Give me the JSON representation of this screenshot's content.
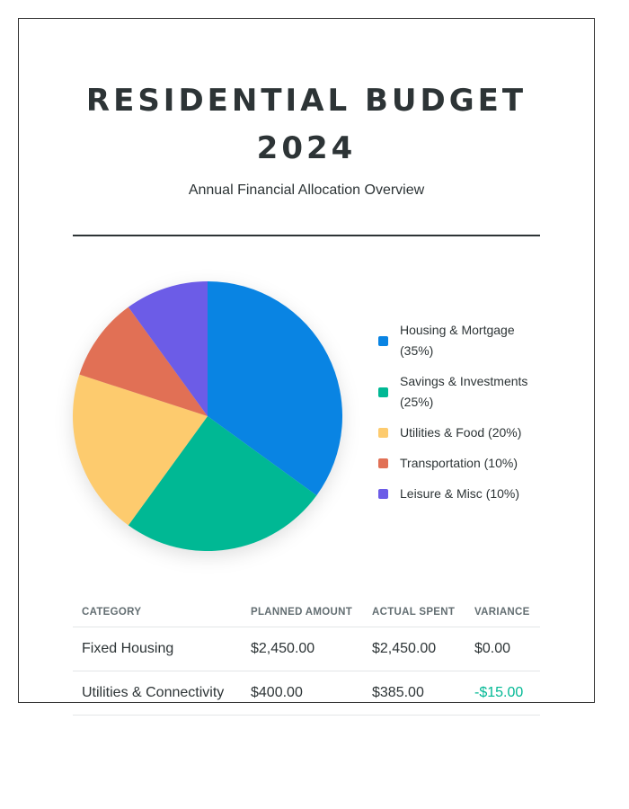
{
  "header": {
    "title": "RESIDENTIAL BUDGET 2024",
    "subtitle": "Annual Financial Allocation Overview"
  },
  "chart_data": {
    "type": "pie",
    "categories": [
      "Housing & Mortgage",
      "Savings & Investments",
      "Utilities & Food",
      "Transportation",
      "Leisure & Misc"
    ],
    "values": [
      35,
      25,
      20,
      10,
      10
    ],
    "colors": [
      "#0984e3",
      "#00b894",
      "#fdcb6e",
      "#e17055",
      "#6c5ce7"
    ],
    "legend_labels": [
      "Housing & Mortgage (35%)",
      "Savings & Investments (25%)",
      "Utilities & Food (20%)",
      "Transportation (10%)",
      "Leisure & Misc (10%)"
    ],
    "legend_position": "right"
  },
  "table": {
    "headers": [
      "CATEGORY",
      "PLANNED AMOUNT",
      "ACTUAL SPENT",
      "VARIANCE"
    ],
    "rows": [
      [
        "Fixed Housing",
        "$2,450.00",
        "$2,450.00",
        "$0.00"
      ],
      [
        "Utilities & Connectivity",
        "$400.00",
        "$385.00",
        "-$15.00"
      ]
    ]
  }
}
